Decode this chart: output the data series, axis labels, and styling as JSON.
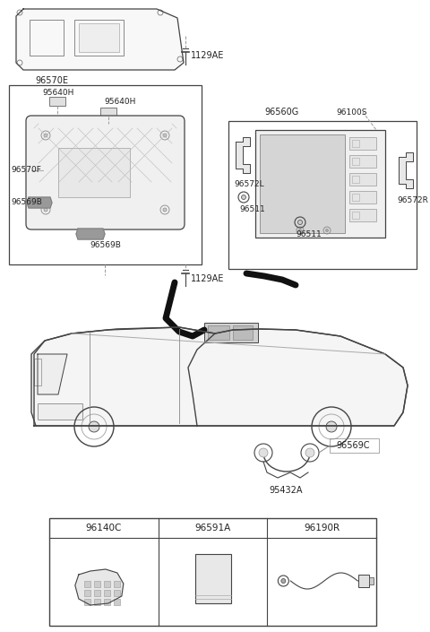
{
  "bg_color": "#ffffff",
  "line_color": "#444444",
  "text_color": "#222222",
  "gray": "#888888",
  "light_gray": "#cccccc",
  "parts": {
    "bolt_label": "1129AE",
    "bracket_label": "96570E",
    "left_box_label_tl": "95640H",
    "left_box_label_tr": "95640H",
    "left_box_label_side1": "96570F",
    "left_box_label_side2": "96569B",
    "left_box_label_bot": "96569B",
    "right_box_label": "96560G",
    "right_nav_label": "96100S",
    "right_brk_left": "96572L",
    "right_pin1": "96511",
    "right_pin2": "96511",
    "right_brk_right": "96572R",
    "headphone_label": "96569C",
    "cord_label": "95432A",
    "table_cols": [
      "96140C",
      "96591A",
      "96190R"
    ]
  }
}
